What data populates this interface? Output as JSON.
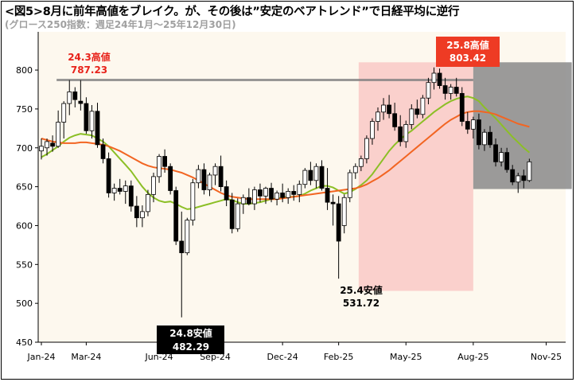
{
  "title": "<図5>8月に前年高値をブレイク。が、その後は”安定のベアトレンド”で日経平均に逆行",
  "subtitle": "(グロース250指数：週足24年1月～25年12月30日)",
  "colors": {
    "up_candle_fill": "#ffffff",
    "down_candle_fill": "#000000",
    "ma_short": "#8cbf26",
    "ma_long": "#f26522",
    "prior_high_line": "#808080",
    "uptrend_zone": "#f9c9c5",
    "downtrend_zone": "#8a8a8a",
    "plot_bg": "#fdf8ee",
    "high_callout_bg": "#ee3b24",
    "low_callout_bg": "#000000",
    "label_red": "#e8231b"
  },
  "annotations": {
    "high_2024": {
      "label": "24.3高値",
      "value": "787.23"
    },
    "high_2025": {
      "label": "25.8高値",
      "value": "803.42"
    },
    "low_2024": {
      "label": "24.8安値",
      "value": "482.29"
    },
    "low_2025": {
      "label": "25.4安値",
      "value": "531.72"
    }
  },
  "chart_data": {
    "type": "candlestick",
    "title": "<図5>8月に前年高値をブレイク。が、その後は”安定のベアトレンド”で日経平均に逆行",
    "subtitle": "(グロース250指数：週足24年1月～25年12月30日)",
    "xlabel": "",
    "ylabel": "",
    "ylim": [
      450,
      830
    ],
    "yticks": [
      450,
      500,
      550,
      600,
      650,
      700,
      750,
      800
    ],
    "grid": false,
    "x_tick_labels": [
      "Jan-24",
      "Mar-24",
      "Jun-24",
      "Sep-24",
      "Dec-24",
      "Feb-25",
      "May-25",
      "Aug-25",
      "Nov-25"
    ],
    "x_tick_weeks": [
      0,
      8,
      21,
      31,
      43,
      53,
      65,
      77,
      90
    ],
    "reference_line": {
      "value": 787.23,
      "from_week": 3,
      "to_week": 77
    },
    "shaded_zones": [
      {
        "from_week": 57,
        "to_week": 77,
        "y_from": 516,
        "y_to": 810
      },
      {
        "from_week": 77,
        "to_week": 94,
        "y_from": 647,
        "y_to": 810
      }
    ],
    "candles": [
      {
        "o": 696,
        "h": 712,
        "l": 685,
        "c": 702
      },
      {
        "o": 700,
        "h": 712,
        "l": 690,
        "c": 708
      },
      {
        "o": 706,
        "h": 716,
        "l": 695,
        "c": 702
      },
      {
        "o": 702,
        "h": 748,
        "l": 700,
        "c": 733
      },
      {
        "o": 733,
        "h": 760,
        "l": 712,
        "c": 757
      },
      {
        "o": 757,
        "h": 787,
        "l": 742,
        "c": 772
      },
      {
        "o": 772,
        "h": 778,
        "l": 752,
        "c": 762
      },
      {
        "o": 760,
        "h": 787,
        "l": 748,
        "c": 757
      },
      {
        "o": 757,
        "h": 765,
        "l": 718,
        "c": 722
      },
      {
        "o": 722,
        "h": 755,
        "l": 712,
        "c": 747
      },
      {
        "o": 747,
        "h": 758,
        "l": 700,
        "c": 704
      },
      {
        "o": 704,
        "h": 712,
        "l": 680,
        "c": 686
      },
      {
        "o": 686,
        "h": 694,
        "l": 636,
        "c": 642
      },
      {
        "o": 642,
        "h": 654,
        "l": 632,
        "c": 648
      },
      {
        "o": 648,
        "h": 660,
        "l": 640,
        "c": 644
      },
      {
        "o": 644,
        "h": 658,
        "l": 628,
        "c": 651
      },
      {
        "o": 651,
        "h": 658,
        "l": 618,
        "c": 625
      },
      {
        "o": 625,
        "h": 638,
        "l": 598,
        "c": 610
      },
      {
        "o": 610,
        "h": 626,
        "l": 598,
        "c": 618
      },
      {
        "o": 618,
        "h": 646,
        "l": 612,
        "c": 640
      },
      {
        "o": 640,
        "h": 668,
        "l": 630,
        "c": 663
      },
      {
        "o": 663,
        "h": 692,
        "l": 655,
        "c": 689
      },
      {
        "o": 689,
        "h": 698,
        "l": 668,
        "c": 676
      },
      {
        "o": 676,
        "h": 680,
        "l": 640,
        "c": 645
      },
      {
        "o": 645,
        "h": 650,
        "l": 575,
        "c": 580
      },
      {
        "o": 580,
        "h": 618,
        "l": 482,
        "c": 565
      },
      {
        "o": 565,
        "h": 610,
        "l": 562,
        "c": 607
      },
      {
        "o": 607,
        "h": 660,
        "l": 600,
        "c": 655
      },
      {
        "o": 655,
        "h": 678,
        "l": 648,
        "c": 672
      },
      {
        "o": 672,
        "h": 680,
        "l": 640,
        "c": 646
      },
      {
        "o": 646,
        "h": 668,
        "l": 638,
        "c": 665
      },
      {
        "o": 665,
        "h": 680,
        "l": 652,
        "c": 676
      },
      {
        "o": 676,
        "h": 690,
        "l": 644,
        "c": 650
      },
      {
        "o": 650,
        "h": 658,
        "l": 625,
        "c": 633
      },
      {
        "o": 633,
        "h": 642,
        "l": 590,
        "c": 596
      },
      {
        "o": 596,
        "h": 635,
        "l": 592,
        "c": 628
      },
      {
        "o": 628,
        "h": 640,
        "l": 615,
        "c": 636
      },
      {
        "o": 636,
        "h": 648,
        "l": 626,
        "c": 628
      },
      {
        "o": 628,
        "h": 650,
        "l": 620,
        "c": 646
      },
      {
        "o": 646,
        "h": 654,
        "l": 630,
        "c": 638
      },
      {
        "o": 638,
        "h": 650,
        "l": 628,
        "c": 648
      },
      {
        "o": 648,
        "h": 655,
        "l": 630,
        "c": 634
      },
      {
        "o": 634,
        "h": 645,
        "l": 626,
        "c": 642
      },
      {
        "o": 642,
        "h": 654,
        "l": 630,
        "c": 636
      },
      {
        "o": 636,
        "h": 648,
        "l": 628,
        "c": 644
      },
      {
        "o": 644,
        "h": 652,
        "l": 632,
        "c": 640
      },
      {
        "o": 640,
        "h": 658,
        "l": 630,
        "c": 653
      },
      {
        "o": 653,
        "h": 674,
        "l": 648,
        "c": 671
      },
      {
        "o": 671,
        "h": 682,
        "l": 652,
        "c": 658
      },
      {
        "o": 658,
        "h": 680,
        "l": 648,
        "c": 676
      },
      {
        "o": 676,
        "h": 684,
        "l": 645,
        "c": 648
      },
      {
        "o": 648,
        "h": 674,
        "l": 620,
        "c": 630
      },
      {
        "o": 630,
        "h": 640,
        "l": 600,
        "c": 628
      },
      {
        "o": 628,
        "h": 638,
        "l": 531.72,
        "c": 580
      },
      {
        "o": 600,
        "h": 640,
        "l": 590,
        "c": 636
      },
      {
        "o": 636,
        "h": 672,
        "l": 630,
        "c": 668
      },
      {
        "o": 668,
        "h": 680,
        "l": 660,
        "c": 676
      },
      {
        "o": 676,
        "h": 690,
        "l": 670,
        "c": 686
      },
      {
        "o": 686,
        "h": 716,
        "l": 680,
        "c": 712
      },
      {
        "o": 712,
        "h": 738,
        "l": 704,
        "c": 734
      },
      {
        "o": 734,
        "h": 752,
        "l": 722,
        "c": 746
      },
      {
        "o": 746,
        "h": 764,
        "l": 736,
        "c": 755
      },
      {
        "o": 755,
        "h": 768,
        "l": 738,
        "c": 744
      },
      {
        "o": 744,
        "h": 758,
        "l": 722,
        "c": 727
      },
      {
        "o": 727,
        "h": 742,
        "l": 702,
        "c": 708
      },
      {
        "o": 708,
        "h": 735,
        "l": 700,
        "c": 730
      },
      {
        "o": 730,
        "h": 756,
        "l": 724,
        "c": 750
      },
      {
        "o": 750,
        "h": 762,
        "l": 738,
        "c": 743
      },
      {
        "o": 743,
        "h": 768,
        "l": 738,
        "c": 764
      },
      {
        "o": 764,
        "h": 790,
        "l": 756,
        "c": 784
      },
      {
        "o": 784,
        "h": 803.42,
        "l": 775,
        "c": 796
      },
      {
        "o": 796,
        "h": 802,
        "l": 776,
        "c": 780
      },
      {
        "o": 780,
        "h": 790,
        "l": 762,
        "c": 770
      },
      {
        "o": 770,
        "h": 782,
        "l": 762,
        "c": 778
      },
      {
        "o": 778,
        "h": 790,
        "l": 766,
        "c": 770
      },
      {
        "o": 770,
        "h": 778,
        "l": 728,
        "c": 734
      },
      {
        "o": 734,
        "h": 746,
        "l": 718,
        "c": 724
      },
      {
        "o": 724,
        "h": 740,
        "l": 712,
        "c": 736
      },
      {
        "o": 736,
        "h": 744,
        "l": 698,
        "c": 704
      },
      {
        "o": 704,
        "h": 724,
        "l": 696,
        "c": 720
      },
      {
        "o": 720,
        "h": 728,
        "l": 700,
        "c": 704
      },
      {
        "o": 704,
        "h": 712,
        "l": 676,
        "c": 682
      },
      {
        "o": 682,
        "h": 700,
        "l": 676,
        "c": 694
      },
      {
        "o": 694,
        "h": 700,
        "l": 668,
        "c": 672
      },
      {
        "o": 672,
        "h": 678,
        "l": 652,
        "c": 656
      },
      {
        "o": 656,
        "h": 668,
        "l": 642,
        "c": 664
      },
      {
        "o": 664,
        "h": 672,
        "l": 648,
        "c": 658
      },
      {
        "o": 658,
        "h": 686,
        "l": 656,
        "c": 682
      }
    ],
    "series": [
      {
        "values": [
          688,
          692,
          697,
          702,
          708,
          713,
          716,
          718,
          717,
          716,
          712,
          708,
          702,
          694,
          686,
          678,
          670,
          660,
          650,
          642,
          636,
          632,
          630,
          631,
          628,
          624,
          621,
          622,
          624,
          626,
          628,
          630,
          632,
          634,
          633,
          630,
          628,
          628,
          629,
          630,
          632,
          634,
          635,
          636,
          637,
          637,
          638,
          641,
          645,
          648,
          651,
          651,
          649,
          645,
          641,
          643,
          647,
          652,
          658,
          666,
          676,
          686,
          696,
          704,
          711,
          717,
          722,
          728,
          734,
          740,
          746,
          751,
          756,
          760,
          763,
          765,
          766,
          764,
          760,
          752,
          745,
          738,
          730,
          722,
          714,
          707,
          700,
          694
        ]
      },
      {
        "values": [
          712,
          710,
          708,
          707,
          706,
          706,
          706,
          707,
          707,
          706,
          705,
          704,
          702,
          699,
          696,
          692,
          688,
          684,
          680,
          677,
          675,
          674,
          673,
          672,
          670,
          668,
          665,
          662,
          658,
          654,
          650,
          646,
          642,
          639,
          637,
          636,
          635,
          634,
          634,
          634,
          634,
          634,
          634,
          635,
          636,
          637,
          638,
          639,
          640,
          641,
          642,
          643,
          644,
          645,
          646,
          647,
          648,
          650,
          653,
          657,
          661,
          666,
          671,
          677,
          683,
          689,
          695,
          701,
          707,
          713,
          719,
          725,
          731,
          736,
          740,
          744,
          746,
          747,
          747,
          746,
          745,
          743,
          740,
          737,
          734,
          731,
          729,
          727
        ]
      }
    ]
  }
}
